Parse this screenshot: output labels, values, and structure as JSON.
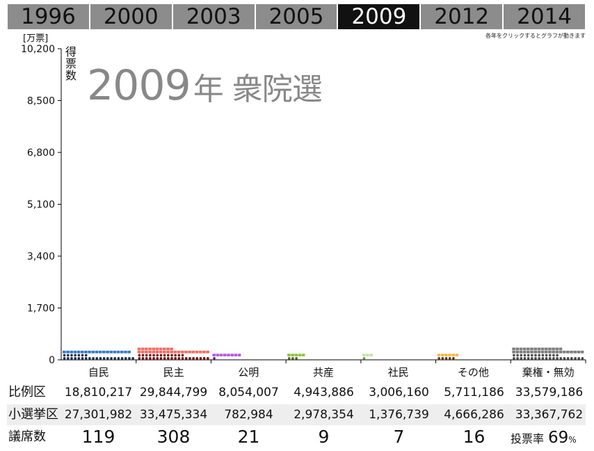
{
  "tabs": [
    "1996",
    "2000",
    "2003",
    "2005",
    "2009",
    "2012",
    "2014"
  ],
  "active_tab": "2009",
  "hint": "各年をクリックするとグラフが動きます",
  "title": {
    "year": "2009",
    "suffix": "年 衆院選"
  },
  "chart_data": {
    "type": "bar",
    "unit_label": "[万票]",
    "ylabel": "得票数",
    "ylim": [
      0,
      10200
    ],
    "yticks": [
      0,
      1700,
      3400,
      5100,
      6800,
      8500,
      10200
    ],
    "ytick_labels": [
      "0",
      "1,700",
      "3,400",
      "5,100",
      "6,800",
      "8,500",
      "10,200"
    ],
    "categories": [
      "自民",
      "民主",
      "公明",
      "共産",
      "社民",
      "その他",
      "棄権・無効"
    ],
    "colors": [
      "#3b79c3",
      "#f06d62",
      "#b35ae0",
      "#8cc43a",
      "#c9e1a9",
      "#f2b84b",
      "#7d7d7d"
    ],
    "dark_colors": [
      "#1b2d4c",
      "#7a0a0a",
      "#6a1a8a",
      "#4d6b1e",
      "#6d9a3a",
      "#5d3a12",
      "#4a4a4a"
    ],
    "series": [
      {
        "name": "比例区",
        "values": [
          1881.0217,
          2984.4799,
          805.4007,
          494.3886,
          300.616,
          571.1186,
          3357.9186
        ]
      },
      {
        "name": "小選挙区",
        "values": [
          2730.1982,
          3347.5334,
          78.2984,
          297.8354,
          137.6739,
          466.6286,
          3336.7762
        ]
      }
    ]
  },
  "table": {
    "headers": {
      "pr": "比例区",
      "smd": "小選挙区",
      "seats": "議席数"
    },
    "pr": [
      "18,810,217",
      "29,844,799",
      "8,054,007",
      "4,943,886",
      "3,006,160",
      "5,711,186",
      "33,579,186"
    ],
    "smd": [
      "27,301,982",
      "33,475,334",
      "782,984",
      "2,978,354",
      "1,376,739",
      "4,666,286",
      "33,367,762"
    ],
    "seats": [
      "119",
      "308",
      "21",
      "9",
      "7",
      "16"
    ],
    "turnout": {
      "label": "投票率",
      "value": "69",
      "unit": "%"
    }
  }
}
